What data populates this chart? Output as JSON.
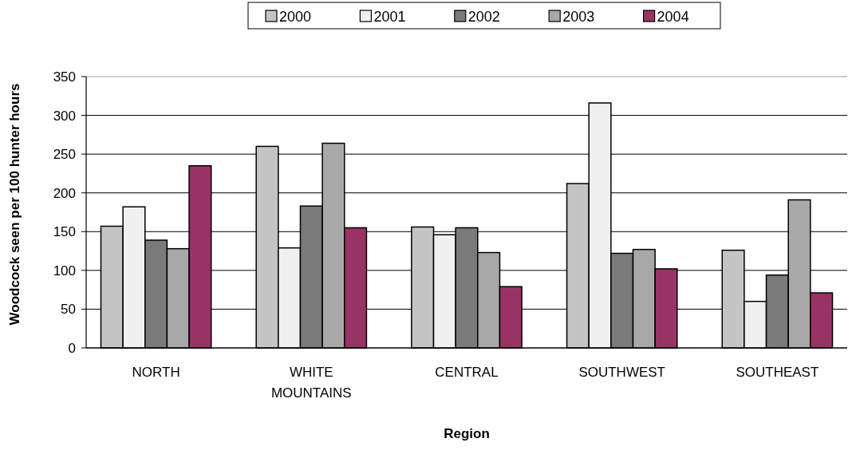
{
  "chart_data": {
    "type": "bar",
    "xlabel": "Region",
    "ylabel": "Woodcock seen per 100 hunter hours",
    "categories": [
      "NORTH",
      "WHITE MOUNTAINS",
      "CENTRAL",
      "SOUTHWEST",
      "SOUTHEAST"
    ],
    "series": [
      {
        "name": "2000",
        "color": "#c4c4c4",
        "values": [
          157,
          260,
          156,
          212,
          126
        ]
      },
      {
        "name": "2001",
        "color": "#f0f0f0",
        "values": [
          182,
          129,
          146,
          316,
          60
        ]
      },
      {
        "name": "2002",
        "color": "#7a7a7a",
        "values": [
          139,
          183,
          155,
          122,
          94
        ]
      },
      {
        "name": "2003",
        "color": "#a8a8a8",
        "values": [
          128,
          264,
          123,
          127,
          191
        ]
      },
      {
        "name": "2004",
        "color": "#993366",
        "values": [
          235,
          155,
          79,
          102,
          71
        ]
      }
    ],
    "ylim": [
      0,
      350
    ],
    "yticks": [
      0,
      50,
      100,
      150,
      200,
      250,
      300,
      350
    ],
    "grid": "y",
    "legend": "top"
  }
}
